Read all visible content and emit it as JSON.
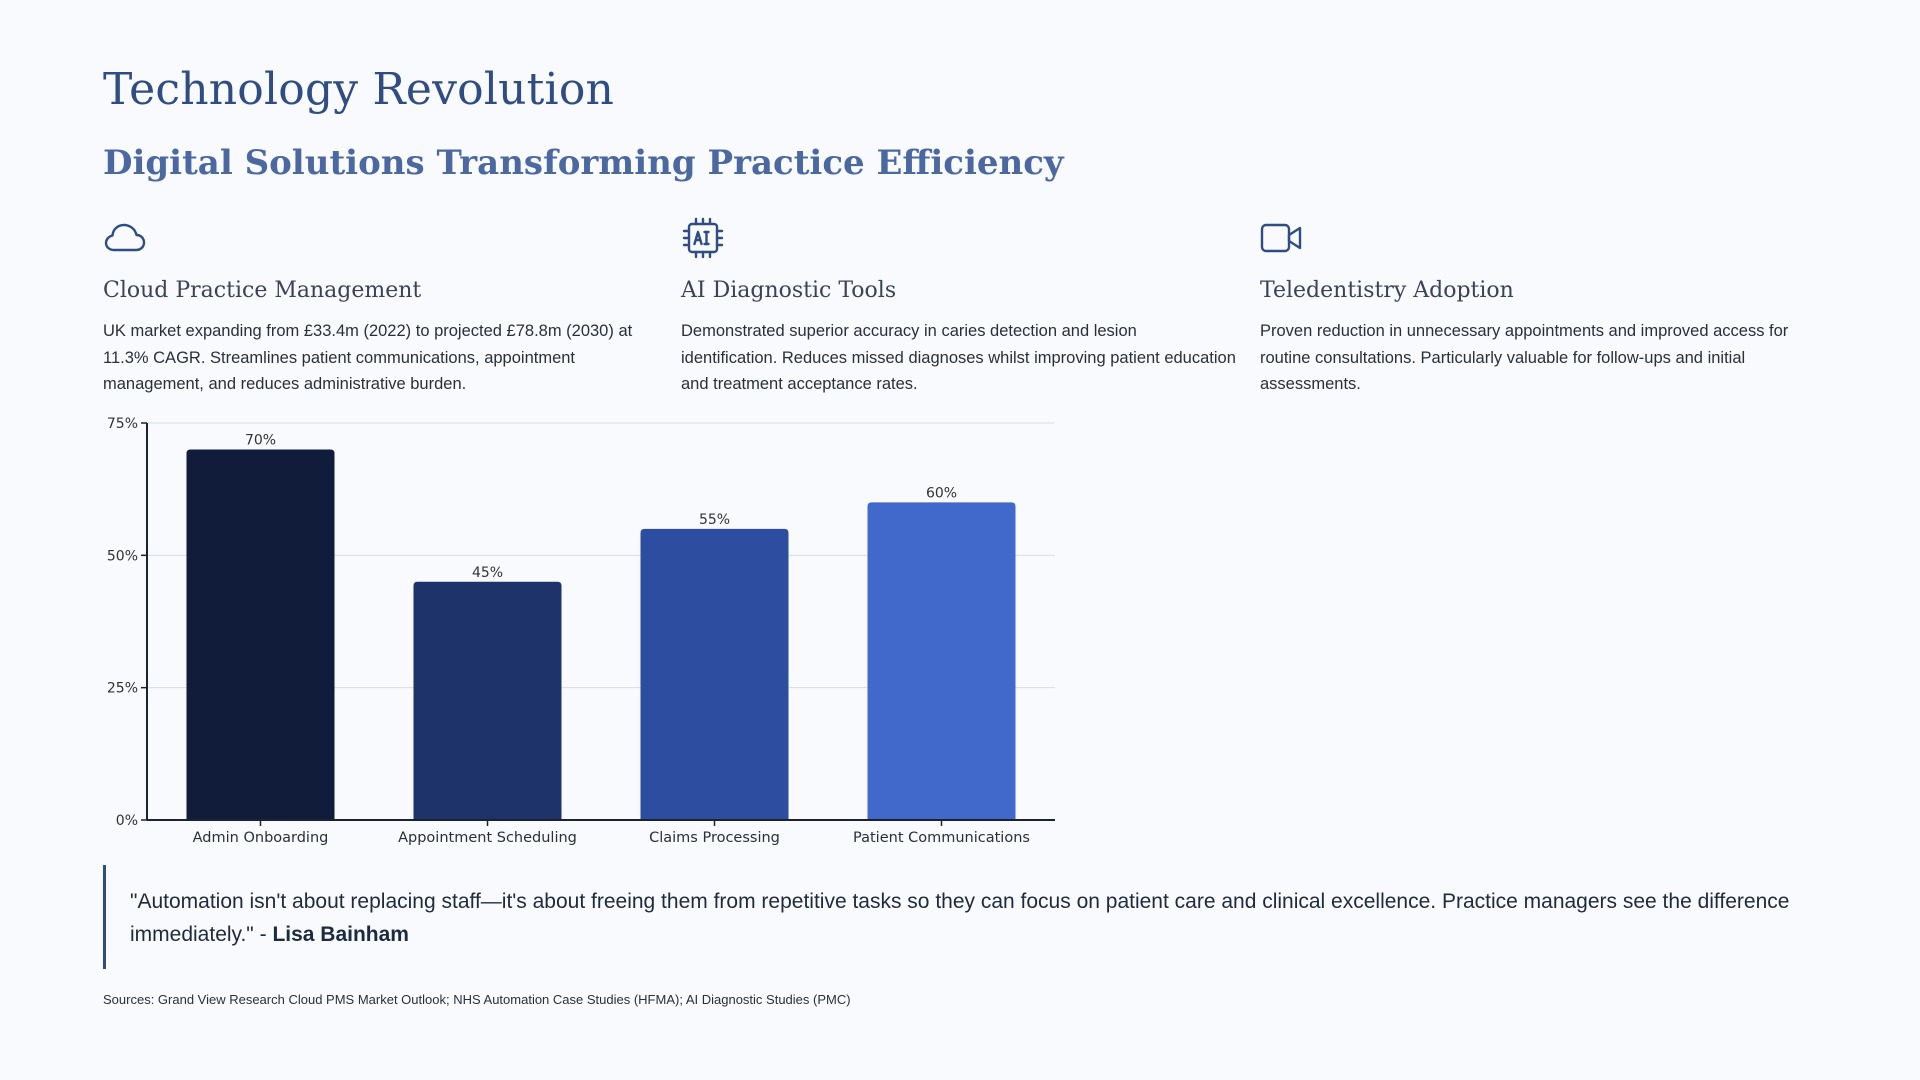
{
  "page": {
    "title": "Technology Revolution",
    "subtitle": "Digital Solutions Transforming Practice Efficiency"
  },
  "features": [
    {
      "icon": "cloud-icon",
      "title": "Cloud Practice Management",
      "text": "UK market expanding from £33.4m (2022) to projected £78.8m (2030) at 11.3% CAGR. Streamlines patient communications, appointment management, and reduces administrative burden."
    },
    {
      "icon": "ai-chip-icon",
      "title": "AI Diagnostic Tools",
      "text": "Demonstrated superior accuracy in caries detection and lesion identification. Reduces missed diagnoses whilst improving patient education and treatment acceptance rates."
    },
    {
      "icon": "video-camera-icon",
      "title": "Teledentistry Adoption",
      "text": "Proven reduction in unnecessary appointments and improved access for routine consultations. Particularly valuable for follow-ups and initial assessments."
    }
  ],
  "chart_data": {
    "type": "bar",
    "categories": [
      "Admin Onboarding",
      "Appointment Scheduling",
      "Claims Processing",
      "Patient Communications"
    ],
    "values": [
      70,
      45,
      55,
      60
    ],
    "data_labels": [
      "70%",
      "45%",
      "55%",
      "60%"
    ],
    "colors": [
      "#111c3a",
      "#1e3369",
      "#2d4da0",
      "#4169cc"
    ],
    "ylim": [
      0,
      75
    ],
    "yticks": [
      0,
      25,
      50,
      75
    ],
    "ytick_labels": [
      "0%",
      "25%",
      "50%",
      "75%"
    ],
    "grid": true,
    "xlabel": "",
    "ylabel": ""
  },
  "quote": {
    "text": "\"Automation isn't about replacing staff—it's about freeing them from repetitive tasks so they can focus on patient care and clinical excellence. Practice managers see the difference immediately.\" - ",
    "author": "Lisa Bainham"
  },
  "sources": "Sources: Grand View Research Cloud PMS Market Outlook; NHS Automation Case Studies (HFMA); AI Diagnostic Studies (PMC)",
  "colors": {
    "accent": "#2f4d82",
    "background": "#f8fafd"
  }
}
